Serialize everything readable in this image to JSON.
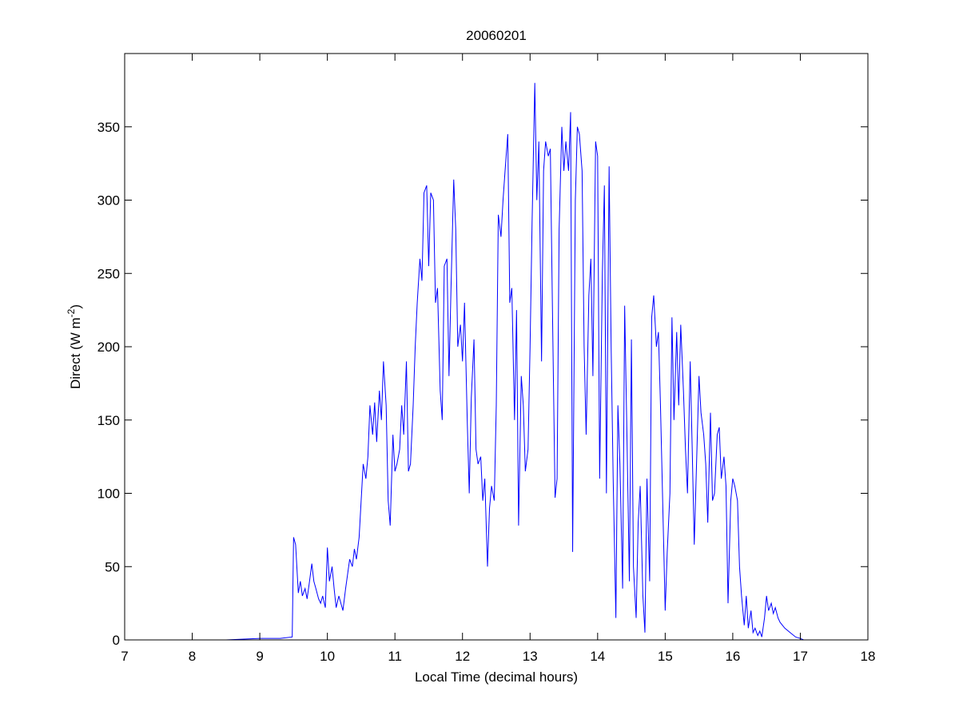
{
  "chart_data": {
    "type": "line",
    "title": "20060201",
    "x_label": "Local Time (decimal hours)",
    "y_label_parts": [
      "Direct (W m",
      "-2",
      ")"
    ],
    "color": "#0000ff",
    "xlim": [
      7,
      18
    ],
    "xticks": [
      7,
      8,
      9,
      10,
      11,
      12,
      13,
      14,
      15,
      16,
      17,
      18
    ],
    "ylim": [
      0,
      400
    ],
    "yticks": [
      0,
      50,
      100,
      150,
      200,
      250,
      300,
      350
    ],
    "x": [
      7.67,
      8.5,
      9.0,
      9.3,
      9.48,
      9.5,
      9.53,
      9.57,
      9.6,
      9.63,
      9.67,
      9.7,
      9.73,
      9.77,
      9.8,
      9.83,
      9.87,
      9.9,
      9.93,
      9.97,
      10.0,
      10.03,
      10.07,
      10.1,
      10.13,
      10.17,
      10.2,
      10.23,
      10.27,
      10.3,
      10.33,
      10.37,
      10.4,
      10.43,
      10.47,
      10.5,
      10.53,
      10.57,
      10.6,
      10.63,
      10.67,
      10.7,
      10.73,
      10.77,
      10.8,
      10.83,
      10.87,
      10.9,
      10.93,
      10.97,
      11.0,
      11.03,
      11.07,
      11.1,
      11.13,
      11.17,
      11.2,
      11.23,
      11.27,
      11.3,
      11.33,
      11.37,
      11.4,
      11.43,
      11.47,
      11.5,
      11.53,
      11.57,
      11.6,
      11.63,
      11.67,
      11.7,
      11.73,
      11.77,
      11.8,
      11.83,
      11.87,
      11.9,
      11.93,
      11.97,
      12.0,
      12.03,
      12.07,
      12.1,
      12.13,
      12.17,
      12.2,
      12.23,
      12.27,
      12.3,
      12.33,
      12.37,
      12.4,
      12.43,
      12.47,
      12.5,
      12.53,
      12.57,
      12.6,
      12.63,
      12.67,
      12.7,
      12.73,
      12.77,
      12.8,
      12.83,
      12.87,
      12.9,
      12.93,
      12.97,
      13.0,
      13.03,
      13.07,
      13.1,
      13.13,
      13.17,
      13.2,
      13.23,
      13.27,
      13.3,
      13.33,
      13.37,
      13.4,
      13.43,
      13.47,
      13.5,
      13.53,
      13.57,
      13.6,
      13.63,
      13.67,
      13.7,
      13.73,
      13.77,
      13.8,
      13.83,
      13.87,
      13.9,
      13.93,
      13.97,
      14.0,
      14.03,
      14.07,
      14.1,
      14.13,
      14.17,
      14.2,
      14.23,
      14.27,
      14.3,
      14.33,
      14.37,
      14.4,
      14.43,
      14.47,
      14.5,
      14.53,
      14.57,
      14.6,
      14.63,
      14.67,
      14.7,
      14.73,
      14.77,
      14.8,
      14.83,
      14.87,
      14.9,
      14.93,
      14.97,
      15.0,
      15.03,
      15.07,
      15.1,
      15.13,
      15.17,
      15.2,
      15.23,
      15.27,
      15.3,
      15.33,
      15.37,
      15.4,
      15.43,
      15.47,
      15.5,
      15.53,
      15.57,
      15.6,
      15.63,
      15.67,
      15.7,
      15.73,
      15.77,
      15.8,
      15.83,
      15.87,
      15.9,
      15.93,
      15.97,
      16.0,
      16.03,
      16.07,
      16.1,
      16.13,
      16.17,
      16.2,
      16.23,
      16.27,
      16.3,
      16.33,
      16.37,
      16.4,
      16.43,
      16.47,
      16.5,
      16.53,
      16.57,
      16.6,
      16.63,
      16.67,
      16.7,
      16.77,
      16.85,
      16.93,
      17.0,
      17.05
    ],
    "values": [
      0,
      0,
      1,
      1,
      2,
      70,
      65,
      32,
      40,
      30,
      35,
      28,
      38,
      52,
      40,
      35,
      28,
      25,
      30,
      22,
      63,
      40,
      50,
      35,
      22,
      30,
      25,
      20,
      35,
      45,
      55,
      50,
      62,
      55,
      70,
      95,
      120,
      110,
      125,
      160,
      140,
      162,
      135,
      170,
      150,
      190,
      160,
      95,
      78,
      140,
      115,
      120,
      130,
      160,
      140,
      190,
      115,
      120,
      160,
      200,
      230,
      260,
      245,
      305,
      310,
      255,
      305,
      300,
      230,
      240,
      170,
      150,
      255,
      260,
      180,
      240,
      314,
      280,
      200,
      215,
      190,
      230,
      150,
      100,
      165,
      205,
      130,
      120,
      125,
      95,
      110,
      50,
      90,
      105,
      95,
      160,
      290,
      275,
      300,
      320,
      345,
      230,
      240,
      150,
      225,
      78,
      180,
      160,
      115,
      130,
      200,
      285,
      380,
      300,
      340,
      190,
      320,
      340,
      330,
      335,
      230,
      97,
      110,
      280,
      350,
      320,
      340,
      320,
      360,
      60,
      300,
      350,
      345,
      320,
      200,
      140,
      235,
      260,
      180,
      340,
      330,
      110,
      250,
      310,
      100,
      323,
      200,
      110,
      15,
      160,
      120,
      35,
      228,
      150,
      40,
      205,
      50,
      15,
      80,
      105,
      30,
      5,
      110,
      40,
      220,
      235,
      200,
      210,
      160,
      80,
      20,
      60,
      100,
      220,
      150,
      210,
      160,
      215,
      170,
      130,
      100,
      190,
      130,
      65,
      130,
      180,
      155,
      140,
      120,
      80,
      155,
      95,
      100,
      140,
      145,
      110,
      125,
      105,
      25,
      95,
      110,
      105,
      95,
      50,
      30,
      10,
      30,
      8,
      20,
      5,
      8,
      3,
      6,
      2,
      15,
      30,
      20,
      25,
      18,
      22,
      15,
      12,
      8,
      5,
      2,
      1,
      0
    ]
  }
}
